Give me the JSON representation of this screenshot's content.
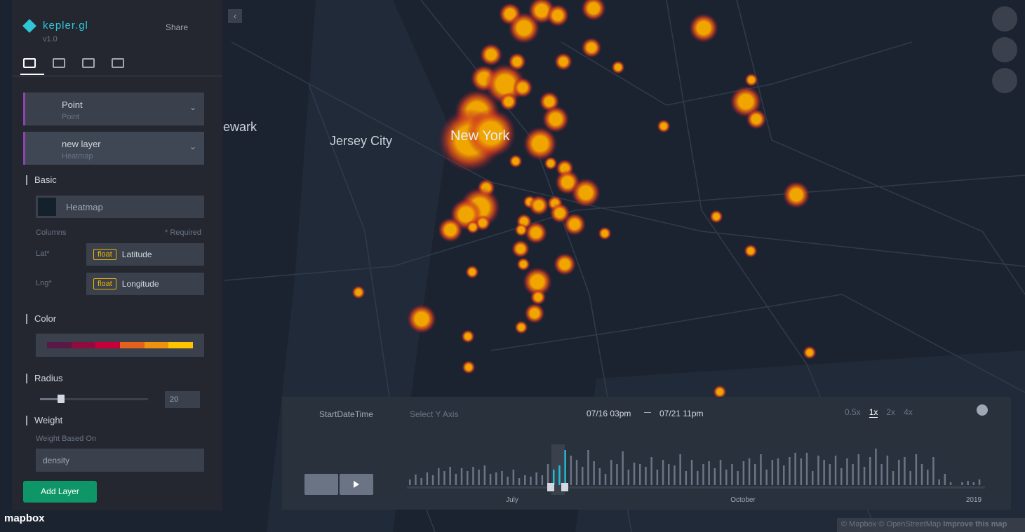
{
  "sidebar": {
    "logo": "kepler.gl",
    "version": "v1.0",
    "share": "Share",
    "layers": [
      {
        "name": "Point",
        "type": "Point"
      },
      {
        "name": "new layer",
        "type": "Heatmap"
      }
    ],
    "basic": {
      "title": "Basic",
      "layer_type": "Heatmap",
      "columns": "Columns",
      "required": "* Required",
      "fields": [
        {
          "label": "Lat*",
          "type": "float",
          "column": "Latitude"
        },
        {
          "label": "Lng*",
          "type": "float",
          "column": "Longitude"
        }
      ]
    },
    "color": {
      "title": "Color",
      "palette": [
        "#5a1846",
        "#900c3f",
        "#c70039",
        "#e3611c",
        "#f1920e",
        "#ffc300"
      ]
    },
    "radius": {
      "title": "Radius",
      "value": 20
    },
    "weight": {
      "title": "Weight",
      "based_on": "Weight Based On",
      "field": "density"
    },
    "add_layer": "Add Layer"
  },
  "map": {
    "labels": [
      "ewark",
      "Jersey City",
      "New York"
    ],
    "brand": "mapbox",
    "attribution": "© Mapbox © OpenStreetMap",
    "improve": "Improve this map"
  },
  "timeline": {
    "field": "StartDateTime",
    "y_axis": "Select Y Axis",
    "start": "07/16 03pm",
    "end": "07/21 11pm",
    "speeds": [
      "0.5x",
      "1x",
      "2x",
      "4x"
    ],
    "active_speed": "1x",
    "axis_labels": [
      "July",
      "October",
      "2019"
    ],
    "histogram": [
      8,
      15,
      10,
      18,
      14,
      24,
      20,
      26,
      16,
      24,
      20,
      26,
      22,
      28,
      16,
      18,
      20,
      12,
      22,
      10,
      14,
      12,
      18,
      14,
      30,
      22,
      28,
      50,
      42,
      36,
      26,
      50,
      34,
      24,
      16,
      36,
      30,
      48,
      22,
      32,
      30,
      26,
      40,
      22,
      36,
      30,
      28,
      44,
      20,
      36,
      20,
      30,
      34,
      24,
      36,
      22,
      30,
      20,
      34,
      38,
      30,
      44,
      22,
      36,
      38,
      28,
      40,
      46,
      38,
      46,
      20,
      42,
      36,
      30,
      42,
      24,
      38,
      30,
      44,
      26,
      40,
      52,
      30,
      42,
      20,
      36,
      40,
      20,
      44,
      30,
      22,
      40,
      8,
      16,
      4,
      0,
      4,
      6,
      4,
      8
    ]
  }
}
